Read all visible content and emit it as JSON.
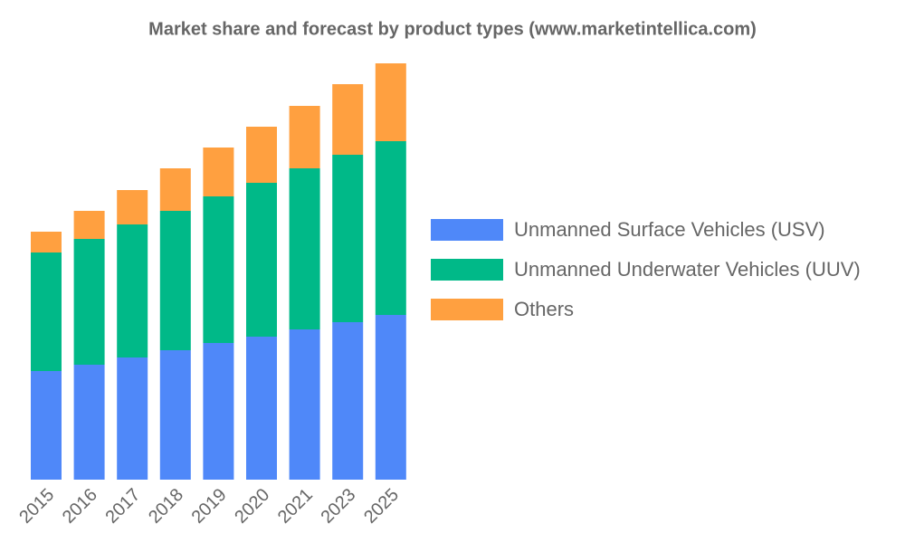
{
  "chart_data": {
    "type": "stacked-bar",
    "title": "Market share and forecast by product types (www.marketintellica.com)",
    "categories": [
      "2015",
      "2016",
      "2017",
      "2018",
      "2019",
      "2020",
      "2021",
      "2023",
      "2025"
    ],
    "series": [
      {
        "name": "Unmanned Surface Vehicles (USV)",
        "color": "#4f88f9",
        "values": [
          120,
          127,
          135,
          143,
          151,
          158,
          166,
          174,
          182
        ]
      },
      {
        "name": "Unmanned Underwater Vehicles (UUV)",
        "color": "#00b988",
        "values": [
          131,
          139,
          147,
          154,
          162,
          170,
          178,
          185,
          192
        ]
      },
      {
        "name": "Others",
        "color": "#ffa040",
        "values": [
          23,
          31,
          38,
          47,
          54,
          62,
          69,
          78,
          86
        ]
      }
    ],
    "legend": "right"
  }
}
